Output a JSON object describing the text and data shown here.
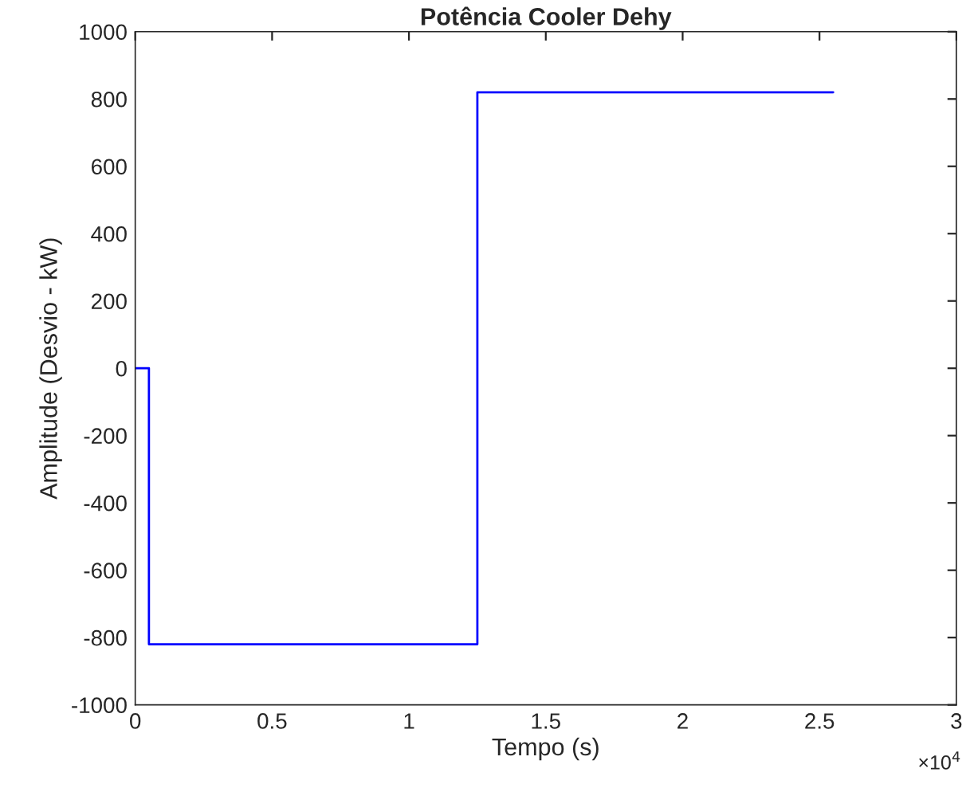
{
  "chart_data": {
    "type": "step",
    "title": "Potência Cooler Dehy",
    "xlabel": "Tempo (s)",
    "ylabel": "Amplitude (Desvio - kW)",
    "x": [
      0,
      0.05,
      1.25,
      2.55
    ],
    "series": [
      {
        "color": "#0000ff",
        "values": [
          0,
          -820,
          820,
          820
        ]
      }
    ],
    "xlim": [
      0,
      3
    ],
    "xticks": [
      0,
      0.5,
      1,
      1.5,
      2,
      2.5,
      3
    ],
    "ylim": [
      -1000,
      1000
    ],
    "yticks": [
      -1000,
      -800,
      -600,
      -400,
      -200,
      0,
      200,
      400,
      600,
      800,
      1000
    ],
    "grid": false,
    "legend": false,
    "annotations": [
      "×10$^{4}$"
    ]
  }
}
